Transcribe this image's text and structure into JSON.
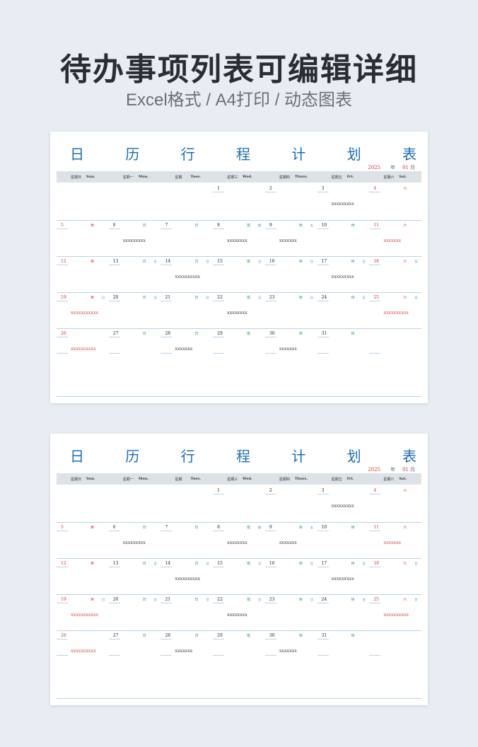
{
  "hero": {
    "title": "待办事项列表可编辑详细",
    "subtitle": "Excel格式 / A4打印 / 动态图表"
  },
  "sheet": {
    "title_chars": [
      "日",
      "历",
      "行",
      "程",
      "计",
      "划",
      "表"
    ],
    "year": "2025",
    "year_label": "年",
    "month": "01",
    "month_label": "月",
    "day_headers": [
      {
        "cn": "星期日",
        "en": "Sun."
      },
      {
        "cn": "星期一",
        "en": "Mon."
      },
      {
        "cn": "星期",
        "en": "Tues."
      },
      {
        "cn": "星期三",
        "en": "Wed."
      },
      {
        "cn": "星期四",
        "en": "Thurs."
      },
      {
        "cn": "星期五",
        "en": "Fri."
      },
      {
        "cn": "星期六",
        "en": "Sat."
      }
    ],
    "weeks": [
      [
        {
          "num": "",
          "red": false,
          "lunar": "",
          "lc": "",
          "mark": "",
          "task": "",
          "tred": false
        },
        {
          "num": "",
          "red": false,
          "lunar": "",
          "lc": "",
          "mark": "",
          "task": "",
          "tred": false
        },
        {
          "num": "",
          "red": false,
          "lunar": "",
          "lc": "",
          "mark": "",
          "task": "",
          "tred": false
        },
        {
          "num": "1",
          "red": false,
          "lunar": "",
          "lc": "",
          "mark": "",
          "task": "",
          "tred": false
        },
        {
          "num": "2",
          "red": false,
          "lunar": "",
          "lc": "",
          "mark": "",
          "task": "",
          "tred": false
        },
        {
          "num": "3",
          "red": false,
          "lunar": "",
          "lc": "",
          "mark": "",
          "task": "XXXXXXXXX",
          "tred": false
        },
        {
          "num": "4",
          "red": true,
          "lunar": "六",
          "lc": "red",
          "mark": "",
          "task": "",
          "tred": false
        }
      ],
      [
        {
          "num": "5",
          "red": true,
          "lunar": "休",
          "lc": "red",
          "mark": "",
          "task": "",
          "tred": false
        },
        {
          "num": "6",
          "red": false,
          "lunar": "日",
          "lc": "green",
          "mark": "",
          "task": "XXXXXXXXX",
          "tred": false
        },
        {
          "num": "7",
          "red": false,
          "lunar": "日",
          "lc": "green",
          "mark": "",
          "task": "",
          "tred": false
        },
        {
          "num": "8",
          "red": false,
          "lunar": "班",
          "lc": "green",
          "mark": "假",
          "task": "XXXXXXXX",
          "tred": false
        },
        {
          "num": "9",
          "red": false,
          "lunar": "休",
          "lc": "green",
          "mark": "五",
          "task": "XXXXXXX",
          "tred": false
        },
        {
          "num": "10",
          "red": false,
          "lunar": "休",
          "lc": "green",
          "mark": "",
          "task": "",
          "tred": false
        },
        {
          "num": "11",
          "red": true,
          "lunar": "六",
          "lc": "red",
          "mark": "",
          "task": "XXXXXXX",
          "tred": true
        }
      ],
      [
        {
          "num": "12",
          "red": true,
          "lunar": "休",
          "lc": "red",
          "mark": "",
          "task": "",
          "tred": false
        },
        {
          "num": "13",
          "red": false,
          "lunar": "日",
          "lc": "green",
          "mark": "日",
          "task": "",
          "tred": false
        },
        {
          "num": "14",
          "red": false,
          "lunar": "日",
          "lc": "green",
          "mark": "日",
          "task": "XXXXXXXXXX",
          "tred": false
        },
        {
          "num": "15",
          "red": false,
          "lunar": "班",
          "lc": "green",
          "mark": "日",
          "task": "",
          "tred": false
        },
        {
          "num": "16",
          "red": false,
          "lunar": "休",
          "lc": "green",
          "mark": "日",
          "task": "",
          "tred": false
        },
        {
          "num": "17",
          "red": false,
          "lunar": "休",
          "lc": "green",
          "mark": "日",
          "task": "XXXXXXXXX",
          "tred": false
        },
        {
          "num": "18",
          "red": true,
          "lunar": "六",
          "lc": "red",
          "mark": "日",
          "task": "",
          "tred": false
        }
      ],
      [
        {
          "num": "19",
          "red": true,
          "lunar": "休",
          "lc": "red",
          "mark": "日",
          "task": "XXXXXXXXXXX",
          "tred": true
        },
        {
          "num": "20",
          "red": false,
          "lunar": "日",
          "lc": "green",
          "mark": "日",
          "task": "",
          "tred": false
        },
        {
          "num": "21",
          "red": false,
          "lunar": "日",
          "lc": "green",
          "mark": "日",
          "task": "",
          "tred": false
        },
        {
          "num": "22",
          "red": false,
          "lunar": "班",
          "lc": "green",
          "mark": "日",
          "task": "XXXXXXXX",
          "tred": false
        },
        {
          "num": "23",
          "red": false,
          "lunar": "休",
          "lc": "green",
          "mark": "日",
          "task": "",
          "tred": false
        },
        {
          "num": "24",
          "red": false,
          "lunar": "休",
          "lc": "green",
          "mark": "日",
          "task": "",
          "tred": false
        },
        {
          "num": "25",
          "red": true,
          "lunar": "六",
          "lc": "red",
          "mark": "日",
          "task": "XXXXXXXXXX",
          "tred": true
        }
      ],
      [
        {
          "num": "26",
          "red": true,
          "lunar": "",
          "lc": "",
          "mark": "",
          "task": "XXXXXXXXXX",
          "tred": true
        },
        {
          "num": "27",
          "red": false,
          "lunar": "日",
          "lc": "green",
          "mark": "",
          "task": "",
          "tred": false
        },
        {
          "num": "28",
          "red": false,
          "lunar": "日",
          "lc": "green",
          "mark": "",
          "task": "XXXXXXX",
          "tred": false
        },
        {
          "num": "29",
          "red": false,
          "lunar": "班",
          "lc": "green",
          "mark": "",
          "task": "",
          "tred": false
        },
        {
          "num": "30",
          "red": false,
          "lunar": "休",
          "lc": "green",
          "mark": "",
          "task": "XXXXXXX",
          "tred": false
        },
        {
          "num": "31",
          "red": false,
          "lunar": "休",
          "lc": "green",
          "mark": "",
          "task": "",
          "tred": false
        },
        {
          "num": "",
          "red": false,
          "lunar": "",
          "lc": "",
          "mark": "",
          "task": "",
          "tred": false
        }
      ]
    ]
  }
}
